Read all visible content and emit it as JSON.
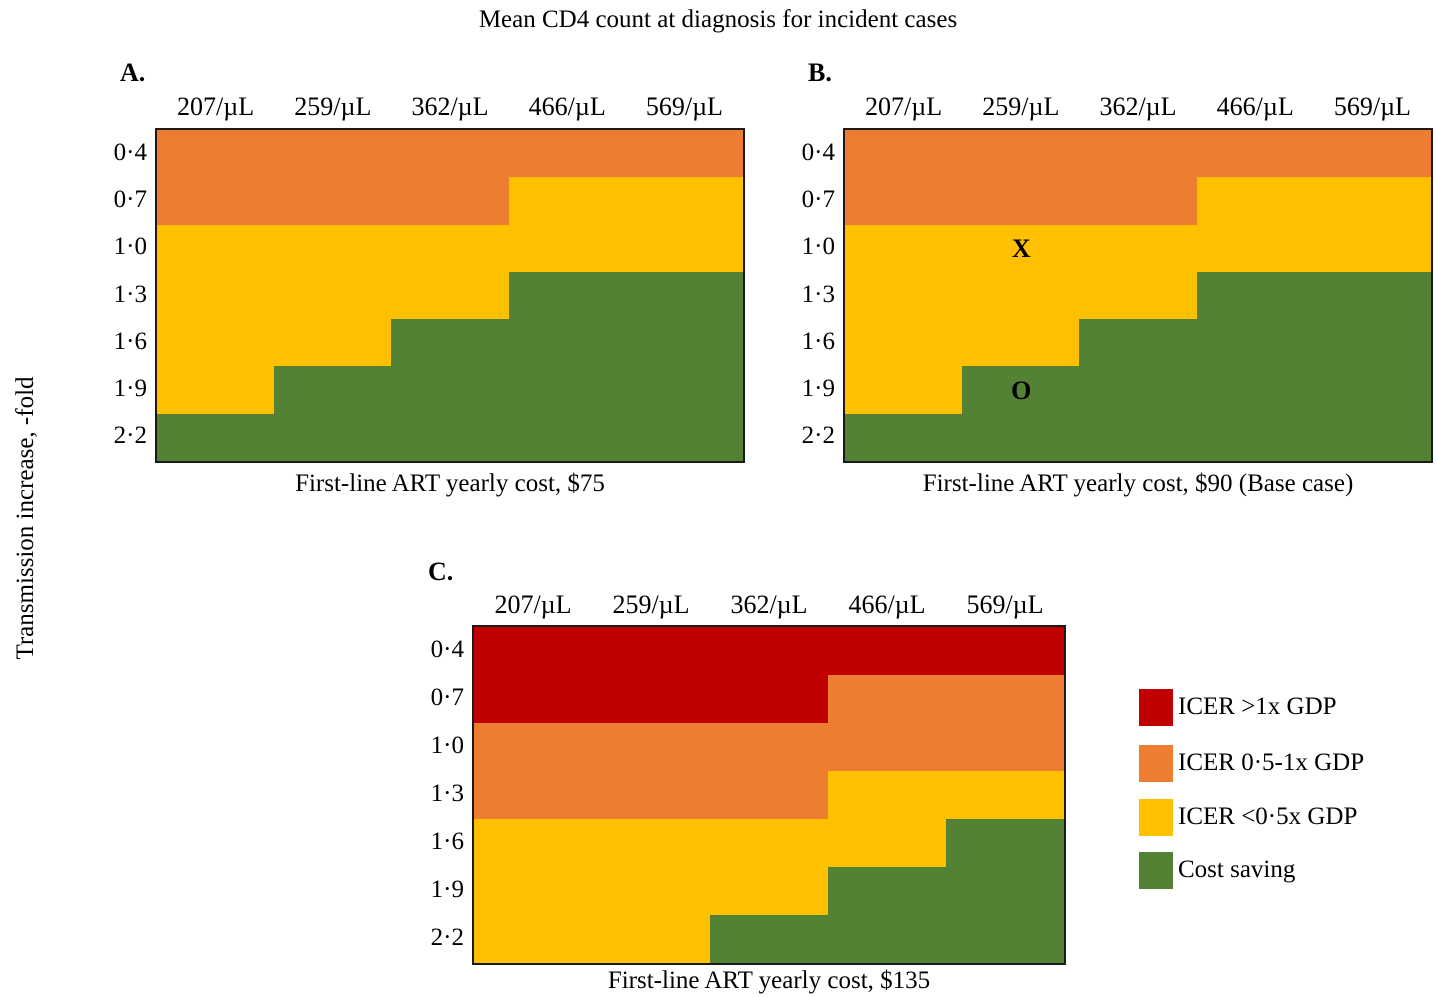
{
  "figure": {
    "title": "Mean CD4 count at diagnosis for incident cases",
    "y_axis_label": "Transmission increase, -fold"
  },
  "colors": {
    "gt1x": "#c00000",
    "mid": "#ed7d31",
    "lt05": "#ffc000",
    "saving": "#548235"
  },
  "legend": [
    {
      "key": "gt1x",
      "label": "ICER >1x GDP"
    },
    {
      "key": "mid",
      "label": "ICER 0·5-1x GDP"
    },
    {
      "key": "lt05",
      "label": "ICER <0·5x GDP"
    },
    {
      "key": "saving",
      "label": "Cost saving"
    }
  ],
  "chart_data": [
    {
      "type": "heatmap",
      "panel": "A.",
      "caption": "First-line ART yearly cost, $75",
      "columns": [
        "207/µL",
        "259/µL",
        "362/µL",
        "466/µL",
        "569/µL"
      ],
      "rows": [
        "0·4",
        "0·7",
        "1·0",
        "1·3",
        "1·6",
        "1·9",
        "2·2"
      ],
      "cells": [
        [
          "mid",
          "mid",
          "mid",
          "mid",
          "mid"
        ],
        [
          "mid",
          "mid",
          "mid",
          "lt05",
          "lt05"
        ],
        [
          "lt05",
          "lt05",
          "lt05",
          "lt05",
          "lt05"
        ],
        [
          "lt05",
          "lt05",
          "lt05",
          "saving",
          "saving"
        ],
        [
          "lt05",
          "lt05",
          "saving",
          "saving",
          "saving"
        ],
        [
          "lt05",
          "saving",
          "saving",
          "saving",
          "saving"
        ],
        [
          "saving",
          "saving",
          "saving",
          "saving",
          "saving"
        ]
      ],
      "markers": []
    },
    {
      "type": "heatmap",
      "panel": "B.",
      "caption": "First-line ART yearly cost, $90 (Base case)",
      "columns": [
        "207/µL",
        "259/µL",
        "362/µL",
        "466/µL",
        "569/µL"
      ],
      "rows": [
        "0·4",
        "0·7",
        "1·0",
        "1·3",
        "1·6",
        "1·9",
        "2·2"
      ],
      "cells": [
        [
          "mid",
          "mid",
          "mid",
          "mid",
          "mid"
        ],
        [
          "mid",
          "mid",
          "mid",
          "lt05",
          "lt05"
        ],
        [
          "lt05",
          "lt05",
          "lt05",
          "lt05",
          "lt05"
        ],
        [
          "lt05",
          "lt05",
          "lt05",
          "saving",
          "saving"
        ],
        [
          "lt05",
          "lt05",
          "saving",
          "saving",
          "saving"
        ],
        [
          "lt05",
          "saving",
          "saving",
          "saving",
          "saving"
        ],
        [
          "saving",
          "saving",
          "saving",
          "saving",
          "saving"
        ]
      ],
      "markers": [
        {
          "text": "X",
          "row": 2,
          "col": 1
        },
        {
          "text": "O",
          "row": 5,
          "col": 1
        }
      ]
    },
    {
      "type": "heatmap",
      "panel": "C.",
      "caption": "First-line ART yearly cost, $135",
      "columns": [
        "207/µL",
        "259/µL",
        "362/µL",
        "466/µL",
        "569/µL"
      ],
      "rows": [
        "0·4",
        "0·7",
        "1·0",
        "1·3",
        "1·6",
        "1·9",
        "2·2"
      ],
      "cells": [
        [
          "gt1x",
          "gt1x",
          "gt1x",
          "gt1x",
          "gt1x"
        ],
        [
          "gt1x",
          "gt1x",
          "gt1x",
          "mid",
          "mid"
        ],
        [
          "mid",
          "mid",
          "mid",
          "mid",
          "mid"
        ],
        [
          "mid",
          "mid",
          "mid",
          "lt05",
          "lt05"
        ],
        [
          "lt05",
          "lt05",
          "lt05",
          "lt05",
          "saving"
        ],
        [
          "lt05",
          "lt05",
          "lt05",
          "saving",
          "saving"
        ],
        [
          "lt05",
          "lt05",
          "saving",
          "saving",
          "saving"
        ]
      ],
      "markers": []
    }
  ]
}
